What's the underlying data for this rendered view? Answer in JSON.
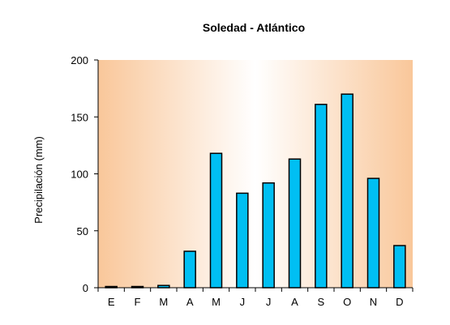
{
  "colors": {
    "bar_fill": "#00BFF3",
    "bar_stroke": "#000000",
    "plot_background_edge": "#F9C79A",
    "plot_background_center": "#FFFFFF"
  },
  "chart_data": {
    "type": "bar",
    "title": "Soledad - Atlántico",
    "xlabel": "",
    "ylabel": "Precipilación (mm)",
    "categories": [
      "E",
      "F",
      "M",
      "A",
      "M",
      "J",
      "J",
      "A",
      "S",
      "O",
      "N",
      "D"
    ],
    "values": [
      1,
      1,
      2,
      32,
      118,
      83,
      92,
      113,
      161,
      170,
      96,
      37
    ],
    "ylim": [
      0,
      200
    ],
    "yticks": [
      0,
      50,
      100,
      150,
      200
    ],
    "grid": false,
    "legend": "none"
  }
}
